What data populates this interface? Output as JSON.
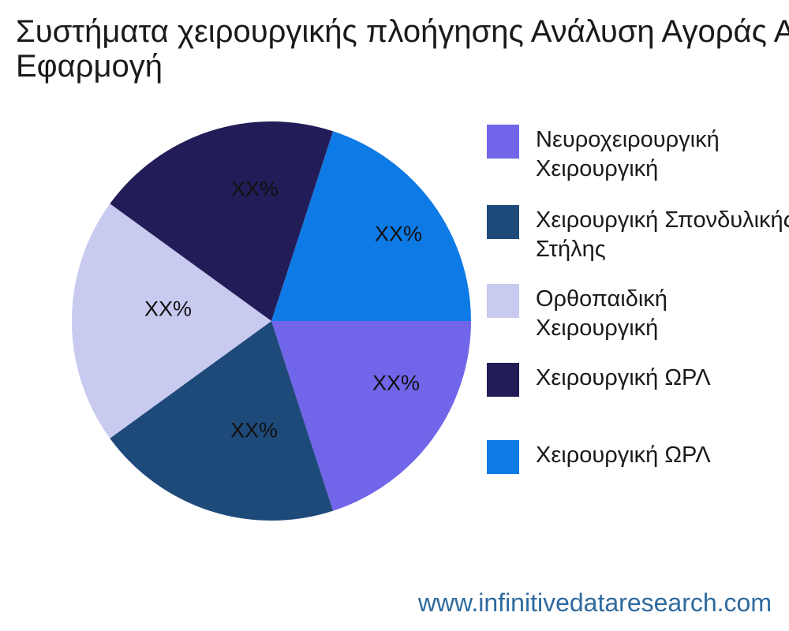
{
  "title": {
    "line1": "Συστήματα χειρουργικής πλοήγησης Ανάλυση Αγοράς Ανά",
    "line2": "Εφαρμογή"
  },
  "footer": {
    "website": "www.infinitivedataresearch.com"
  },
  "colors": {
    "background": "#ffffff",
    "title_text": "#1a1a1a",
    "website_text": "#2e6a9e",
    "pie_label_text": "#111111"
  },
  "chart_data": {
    "type": "pie",
    "title": "Συστήματα χειρουργικής πλοήγησης Ανάλυση Αγοράς Ανά Εφαρμογή",
    "legend_position": "right",
    "start_angle": "east",
    "direction": "clockwise",
    "slices": [
      {
        "legend_label": "Νευροχειρουργική Χειρουργική",
        "pct_label": "XX%",
        "value": 20,
        "color": "#7165ea"
      },
      {
        "legend_label": "Χειρουργική Σπονδυλικής Στήλης",
        "pct_label": "XX%",
        "value": 20,
        "color": "#1e4a7a"
      },
      {
        "legend_label": "Ορθοπαιδική Χειρουργική",
        "pct_label": "XX%",
        "value": 20,
        "color": "#c8caf0"
      },
      {
        "legend_label": "Χειρουργική ΩΡΛ",
        "pct_label": "XX%",
        "value": 20,
        "color": "#221d58"
      },
      {
        "legend_label": "Χειρουργική ΩΡΛ",
        "pct_label": "XX%",
        "value": 20,
        "color": "#0e7ae5"
      }
    ]
  }
}
